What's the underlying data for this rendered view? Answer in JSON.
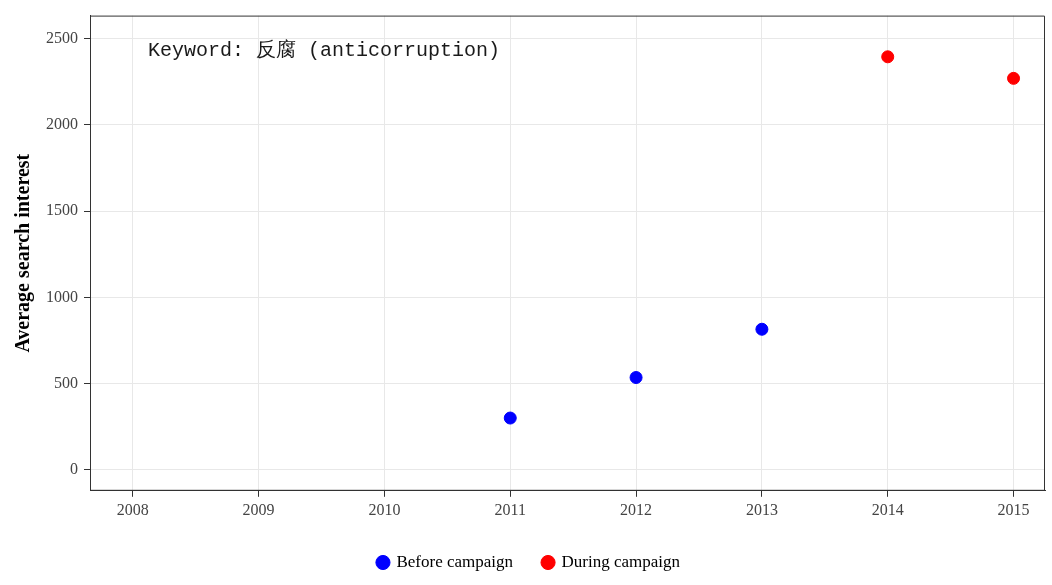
{
  "chart_data": {
    "type": "scatter",
    "ylabel": "Average search interest",
    "annotations": [
      "Keyword: 反腐 (anticorruption)"
    ],
    "series": [
      {
        "name": "Before campaign",
        "color": "#0000ff",
        "x": [
          2011,
          2012,
          2013
        ],
        "values": [
          300,
          535,
          815
        ]
      },
      {
        "name": "During campaign",
        "color": "#ff0000",
        "x": [
          2014,
          2015
        ],
        "values": [
          2395,
          2270
        ]
      }
    ],
    "xlim": [
      2007.66,
      2015.25
    ],
    "xticks": [
      2008,
      2009,
      2010,
      2011,
      2012,
      2013,
      2014,
      2015
    ],
    "ylim": [
      -122,
      2634
    ],
    "yticks": [
      0,
      500,
      1000,
      1500,
      2000,
      2500
    ],
    "grid": true,
    "legend": "bottom",
    "marker": "circle"
  }
}
